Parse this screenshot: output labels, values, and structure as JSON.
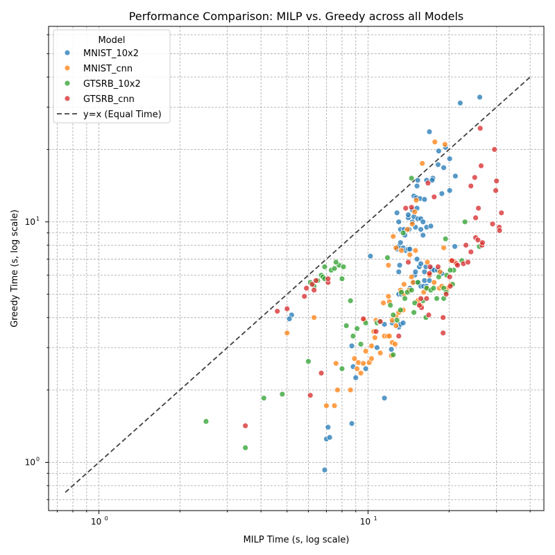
{
  "chart_data": {
    "type": "scatter",
    "title": "Performance Comparison: MILP vs. Greedy across all Models",
    "xlabel": "MILP Time (s, log scale)",
    "ylabel": "Greedy Time (s, log scale)",
    "xscale": "log",
    "yscale": "log",
    "xlim": [
      0.65,
      45
    ],
    "ylim": [
      0.63,
      65
    ],
    "grid": true,
    "x_ticks": [
      {
        "value": 1,
        "label": "10",
        "exp": "0"
      },
      {
        "value": 10,
        "label": "10",
        "exp": "1"
      }
    ],
    "y_ticks": [
      {
        "value": 1,
        "label": "10",
        "exp": "0"
      },
      {
        "value": 10,
        "label": "10",
        "exp": "1"
      }
    ],
    "legend": {
      "title": "Model",
      "position": "upper-left",
      "reference_line_label": "y=x (Equal Time)"
    },
    "reference_line": {
      "label": "y=x (Equal Time)",
      "from": 0.75,
      "to": 40,
      "color": "#404040"
    },
    "series": [
      {
        "name": "MNIST_10x2",
        "color": "#1f77b4",
        "points": [
          [
            6.9,
            0.93
          ],
          [
            7.0,
            1.25
          ],
          [
            7.2,
            1.27
          ],
          [
            7.1,
            1.4
          ],
          [
            8.7,
            1.45
          ],
          [
            5.2,
            4.1
          ],
          [
            5.1,
            3.95
          ],
          [
            8.7,
            3.05
          ],
          [
            8.8,
            2.5
          ],
          [
            9.8,
            2.45
          ],
          [
            9.0,
            2.25
          ],
          [
            10.8,
            3.0
          ],
          [
            12.2,
            2.95
          ],
          [
            11.5,
            1.85
          ],
          [
            10.2,
            7.2
          ],
          [
            11.5,
            3.75
          ],
          [
            12.3,
            3.8
          ],
          [
            13.0,
            3.65
          ],
          [
            13.2,
            3.75
          ],
          [
            13.5,
            3.8
          ],
          [
            13.0,
            5.0
          ],
          [
            13.3,
            5.0
          ],
          [
            13.0,
            6.2
          ],
          [
            13.1,
            6.6
          ],
          [
            12.8,
            7.7
          ],
          [
            13.0,
            7.9
          ],
          [
            13.2,
            8.2
          ],
          [
            13.5,
            7.8
          ],
          [
            13.8,
            7.6
          ],
          [
            14.1,
            7.7
          ],
          [
            14.3,
            7.7
          ],
          [
            13.7,
            8.8
          ],
          [
            13.2,
            9.3
          ],
          [
            13.6,
            9.3
          ],
          [
            14.2,
            9.3
          ],
          [
            14.6,
            10.0
          ],
          [
            15.0,
            9.5
          ],
          [
            14.8,
            10.5
          ],
          [
            14.1,
            10.4
          ],
          [
            15.3,
            10.3
          ],
          [
            15.7,
            10.3
          ],
          [
            16.0,
            10.0
          ],
          [
            13.0,
            10.0
          ],
          [
            12.8,
            10.9
          ],
          [
            14.1,
            10.7
          ],
          [
            14.6,
            11.2
          ],
          [
            15.2,
            11.4
          ],
          [
            14.8,
            12.8
          ],
          [
            15.1,
            12.6
          ],
          [
            15.6,
            12.5
          ],
          [
            16.2,
            12.4
          ],
          [
            15.2,
            14.1
          ],
          [
            15.3,
            14.9
          ],
          [
            16.5,
            14.9
          ],
          [
            17.4,
            15.2
          ],
          [
            17.3,
            14.9
          ],
          [
            18.8,
            13.1
          ],
          [
            20.1,
            13.5
          ],
          [
            21.1,
            15.5
          ],
          [
            19.1,
            16.8
          ],
          [
            18.2,
            17.3
          ],
          [
            20.1,
            18.3
          ],
          [
            19.4,
            20.4
          ],
          [
            18.3,
            19.7
          ],
          [
            16.9,
            23.7
          ],
          [
            22.0,
            31.2
          ],
          [
            26.0,
            33.0
          ],
          [
            14.8,
            5.6
          ],
          [
            15.4,
            5.6
          ],
          [
            15.7,
            5.4
          ],
          [
            16.1,
            5.4
          ],
          [
            16.5,
            5.4
          ],
          [
            16.2,
            5.7
          ],
          [
            16.9,
            5.7
          ],
          [
            14.9,
            6.0
          ],
          [
            15.5,
            6.5
          ],
          [
            16.2,
            6.2
          ],
          [
            17.3,
            6.3
          ],
          [
            17.0,
            6.0
          ],
          [
            16.4,
            6.5
          ],
          [
            17.2,
            6.4
          ],
          [
            17.6,
            6.3
          ],
          [
            18.1,
            6.3
          ],
          [
            18.8,
            6.1
          ],
          [
            15.7,
            6.7
          ],
          [
            16.0,
            8.8
          ],
          [
            16.5,
            9.5
          ],
          [
            17.1,
            9.6
          ],
          [
            15.7,
            9.3
          ],
          [
            21.0,
            7.9
          ],
          [
            15.2,
            7.0
          ],
          [
            15.0,
            6.2
          ],
          [
            14.3,
            5.3
          ]
        ]
      },
      {
        "name": "MNIST_cnn",
        "color": "#ff7f0e",
        "points": [
          [
            5.0,
            3.45
          ],
          [
            6.3,
            4.0
          ],
          [
            7.0,
            1.72
          ],
          [
            7.5,
            1.72
          ],
          [
            7.7,
            2.0
          ],
          [
            7.6,
            2.58
          ],
          [
            8.6,
            2.0
          ],
          [
            8.9,
            2.7
          ],
          [
            9.1,
            2.45
          ],
          [
            9.4,
            2.35
          ],
          [
            9.2,
            2.6
          ],
          [
            9.6,
            2.58
          ],
          [
            9.8,
            2.9
          ],
          [
            10.1,
            2.6
          ],
          [
            10.3,
            2.7
          ],
          [
            10.3,
            3.05
          ],
          [
            10.6,
            3.3
          ],
          [
            10.5,
            3.5
          ],
          [
            11.1,
            2.85
          ],
          [
            11.5,
            3.35
          ],
          [
            11.8,
            3.35
          ],
          [
            12.0,
            3.35
          ],
          [
            12.2,
            2.78
          ],
          [
            12.3,
            3.15
          ],
          [
            12.6,
            3.1
          ],
          [
            12.7,
            3.7
          ],
          [
            12.3,
            3.9
          ],
          [
            12.7,
            4.05
          ],
          [
            13.0,
            4.2
          ],
          [
            13.5,
            4.3
          ],
          [
            12.0,
            4.65
          ],
          [
            11.4,
            4.6
          ],
          [
            11.9,
            4.9
          ],
          [
            11.9,
            6.6
          ],
          [
            13.2,
            5.2
          ],
          [
            13.6,
            5.0
          ],
          [
            13.6,
            5.5
          ],
          [
            14.2,
            5.2
          ],
          [
            14.5,
            5.9
          ],
          [
            14.7,
            5.6
          ],
          [
            15.3,
            4.7
          ],
          [
            15.7,
            4.5
          ],
          [
            16.1,
            5.1
          ],
          [
            16.6,
            5.3
          ],
          [
            16.9,
            6.0
          ],
          [
            17.6,
            5.6
          ],
          [
            18.4,
            5.3
          ],
          [
            18.8,
            5.4
          ],
          [
            19.7,
            5.3
          ],
          [
            20.3,
            5.5
          ],
          [
            20.3,
            6.9
          ],
          [
            21.0,
            6.8
          ],
          [
            16.6,
            6.8
          ],
          [
            15.0,
            7.6
          ],
          [
            14.3,
            7.3
          ],
          [
            13.3,
            7.6
          ],
          [
            12.7,
            7.8
          ],
          [
            12.4,
            8.7
          ],
          [
            14.0,
            9.3
          ],
          [
            14.9,
            11.0
          ],
          [
            15.1,
            12.3
          ],
          [
            15.9,
            17.5
          ],
          [
            17.7,
            21.5
          ],
          [
            19.3,
            21.0
          ],
          [
            19.1,
            7.8
          ],
          [
            18.5,
            6.2
          ],
          [
            14.6,
            9.8
          ],
          [
            9.7,
            3.9
          ],
          [
            10.7,
            3.9
          ]
        ]
      },
      {
        "name": "GTSRB_10x2",
        "color": "#2ca02c",
        "points": [
          [
            2.5,
            1.48
          ],
          [
            3.5,
            1.15
          ],
          [
            4.1,
            1.85
          ],
          [
            4.8,
            1.92
          ],
          [
            6.0,
            2.63
          ],
          [
            6.1,
            5.6
          ],
          [
            6.3,
            5.4
          ],
          [
            6.5,
            5.7
          ],
          [
            6.7,
            6.0
          ],
          [
            6.8,
            5.9
          ],
          [
            6.9,
            5.8
          ],
          [
            6.9,
            6.5
          ],
          [
            7.3,
            6.3
          ],
          [
            7.5,
            6.4
          ],
          [
            7.8,
            6.6
          ],
          [
            7.6,
            6.8
          ],
          [
            8.0,
            5.8
          ],
          [
            8.1,
            6.5
          ],
          [
            8.6,
            4.7
          ],
          [
            8.0,
            2.45
          ],
          [
            8.3,
            3.7
          ],
          [
            8.8,
            3.35
          ],
          [
            9.1,
            3.6
          ],
          [
            9.4,
            3.1
          ],
          [
            9.8,
            3.8
          ],
          [
            10.8,
            3.8
          ],
          [
            11.0,
            3.85
          ],
          [
            11.8,
            7.1
          ],
          [
            12.1,
            4.5
          ],
          [
            12.4,
            4.1
          ],
          [
            12.4,
            2.8
          ],
          [
            12.8,
            3.9
          ],
          [
            13.2,
            4.3
          ],
          [
            13.3,
            5.1
          ],
          [
            13.7,
            4.8
          ],
          [
            14.0,
            5.1
          ],
          [
            14.5,
            5.2
          ],
          [
            14.8,
            4.2
          ],
          [
            14.9,
            4.6
          ],
          [
            15.3,
            5.6
          ],
          [
            16.0,
            4.7
          ],
          [
            16.4,
            4.0
          ],
          [
            16.5,
            5.3
          ],
          [
            17.1,
            5.2
          ],
          [
            17.5,
            5.3
          ],
          [
            18.0,
            4.8
          ],
          [
            18.3,
            5.9
          ],
          [
            19.1,
            5.3
          ],
          [
            19.5,
            5.1
          ],
          [
            19.1,
            4.8
          ],
          [
            19.6,
            6.0
          ],
          [
            19.4,
            8.5
          ],
          [
            20.6,
            5.5
          ],
          [
            20.8,
            6.3
          ],
          [
            20.2,
            6.3
          ],
          [
            22.3,
            6.9
          ],
          [
            22.9,
            10.0
          ],
          [
            25.9,
            7.9
          ],
          [
            14.5,
            15.2
          ],
          [
            13.5,
            9.0
          ]
        ]
      },
      {
        "name": "GTSRB_cnn",
        "color": "#d62728",
        "points": [
          [
            3.5,
            1.42
          ],
          [
            4.6,
            4.25
          ],
          [
            5.0,
            4.35
          ],
          [
            5.8,
            4.9
          ],
          [
            5.9,
            5.3
          ],
          [
            6.1,
            1.9
          ],
          [
            6.2,
            5.5
          ],
          [
            6.3,
            5.2
          ],
          [
            6.4,
            5.7
          ],
          [
            6.7,
            2.35
          ],
          [
            7.1,
            5.6
          ],
          [
            7.1,
            5.8
          ],
          [
            9.6,
            3.95
          ],
          [
            10.7,
            3.5
          ],
          [
            11.1,
            3.85
          ],
          [
            13.0,
            3.35
          ],
          [
            14.1,
            6.8
          ],
          [
            13.8,
            11.4
          ],
          [
            14.5,
            11.5
          ],
          [
            16.5,
            4.8
          ],
          [
            15.8,
            4.4
          ],
          [
            15.5,
            4.5
          ],
          [
            15.7,
            4.8
          ],
          [
            16.8,
            4.1
          ],
          [
            17.0,
            6.5
          ],
          [
            18.2,
            6.5
          ],
          [
            19.0,
            4.0
          ],
          [
            19.0,
            3.45
          ],
          [
            19.5,
            5.0
          ],
          [
            20.1,
            5.9
          ],
          [
            20.2,
            5.4
          ],
          [
            20.5,
            6.9
          ],
          [
            21.3,
            6.7
          ],
          [
            21.5,
            6.6
          ],
          [
            22.6,
            6.7
          ],
          [
            23.5,
            6.8
          ],
          [
            23.1,
            8.0
          ],
          [
            24.1,
            7.5
          ],
          [
            25.1,
            8.6
          ],
          [
            25.6,
            8.4
          ],
          [
            25.7,
            11.4
          ],
          [
            26.5,
            8.0
          ],
          [
            26.6,
            8.2
          ],
          [
            25.1,
            10.4
          ],
          [
            29.0,
            9.8
          ],
          [
            30.7,
            9.5
          ],
          [
            30.8,
            9.2
          ],
          [
            31.3,
            10.9
          ],
          [
            29.8,
            13.5
          ],
          [
            30.0,
            14.8
          ],
          [
            29.5,
            20.0
          ],
          [
            24.1,
            14.1
          ],
          [
            24.9,
            15.3
          ],
          [
            26.3,
            17.1
          ],
          [
            26.1,
            24.5
          ],
          [
            16.7,
            14.5
          ],
          [
            17.6,
            12.7
          ],
          [
            16.9,
            6.1
          ]
        ]
      }
    ]
  }
}
